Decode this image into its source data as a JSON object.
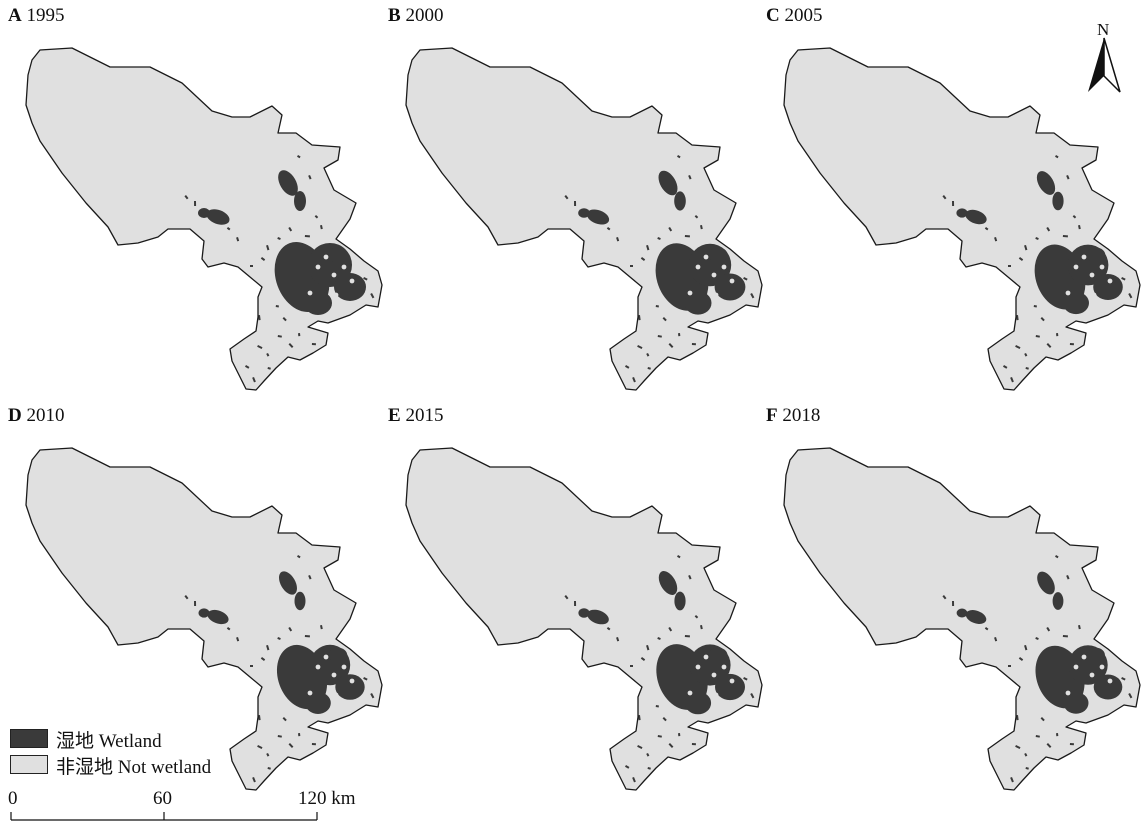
{
  "panels": [
    {
      "letter": "A",
      "year": "1995",
      "wet": 1.0
    },
    {
      "letter": "B",
      "year": "2000",
      "wet": 0.93
    },
    {
      "letter": "C",
      "year": "2005",
      "wet": 0.86
    },
    {
      "letter": "D",
      "year": "2010",
      "wet": 0.84
    },
    {
      "letter": "E",
      "year": "2015",
      "wet": 0.88
    },
    {
      "letter": "F",
      "year": "2018",
      "wet": 0.8
    }
  ],
  "north_label": "N",
  "legend": {
    "items": [
      {
        "label": "湿地 Wetland",
        "color": "#3a3a3a"
      },
      {
        "label": "非湿地 Not wetland",
        "color": "#e0e0e0"
      }
    ]
  },
  "scale": {
    "ticks": [
      "0",
      "60",
      "120 km"
    ]
  },
  "colors": {
    "land": "#e0e0e0",
    "wetland": "#3a3a3a",
    "outline": "#1a1a1a"
  }
}
